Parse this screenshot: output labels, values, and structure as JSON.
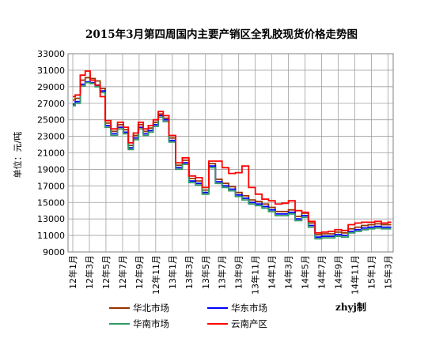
{
  "chart_data": {
    "type": "line",
    "title": "2015年3月第四周国内主要产销区全乳胶现货价格走势图",
    "ylabel": "单位：元/吨",
    "xlabel": "",
    "ylim": [
      9000,
      33000
    ],
    "y_ticks": [
      "33000",
      "31000",
      "29000",
      "27000",
      "25000",
      "23000",
      "21000",
      "19000",
      "17000",
      "15000",
      "13000",
      "11000",
      "9000"
    ],
    "x_ticks": [
      "12年1月",
      "12年3月",
      "12年5月",
      "12年7月",
      "12年9月",
      "12年11月",
      "13年1月",
      "13年3月",
      "13年5月",
      "13年7月",
      "13年9月",
      "13年11月",
      "14年1月",
      "14年3月",
      "14年5月",
      "14年7月",
      "14年9月",
      "14年11月",
      "15年1月",
      "15年3月"
    ],
    "grid": true,
    "legend_position": "bottom",
    "credit": "zhyj制",
    "series": [
      {
        "name": "华北市场",
        "color": "#993300",
        "x": [
          0,
          0.3,
          0.6,
          0.9,
          1.2,
          1.5,
          1.8,
          2.1,
          2.5,
          2.9,
          3.2,
          3.5,
          3.8,
          4.1,
          4.4,
          4.7,
          5.0,
          5.3,
          5.6,
          6.0,
          6.4,
          6.8,
          7.2,
          7.6,
          8.0,
          8.4,
          8.8,
          9.2,
          9.6,
          10.0,
          10.4,
          10.8,
          11.2,
          11.6,
          12.0,
          12.4,
          12.8,
          13.2,
          13.6,
          14.0,
          14.4,
          14.8,
          15.2,
          15.6,
          16.0,
          16.4,
          16.8,
          17.2,
          17.6,
          18.0,
          18.4,
          18.8,
          19.2
        ],
        "y": [
          27400,
          27600,
          29800,
          30100,
          30000,
          29700,
          28800,
          24600,
          23600,
          24400,
          23800,
          21900,
          23100,
          24400,
          23600,
          24000,
          24700,
          25700,
          25200,
          22800,
          19500,
          20100,
          17900,
          17600,
          16500,
          19700,
          17800,
          17300,
          16900,
          16200,
          15800,
          15300,
          15100,
          14800,
          14400,
          13900,
          13900,
          14100,
          13300,
          13700,
          12500,
          11100,
          11200,
          11200,
          11400,
          11300,
          11800,
          12000,
          12200,
          12300,
          12400,
          12300,
          12300
        ]
      },
      {
        "name": "华东市场",
        "color": "#0000ff",
        "x": [
          0,
          0.3,
          0.6,
          0.9,
          1.2,
          1.5,
          1.8,
          2.1,
          2.5,
          2.9,
          3.2,
          3.5,
          3.8,
          4.1,
          4.4,
          4.7,
          5.0,
          5.3,
          5.6,
          6.0,
          6.4,
          6.8,
          7.2,
          7.6,
          8.0,
          8.4,
          8.8,
          9.2,
          9.6,
          10.0,
          10.4,
          10.8,
          11.2,
          11.6,
          12.0,
          12.4,
          12.8,
          13.2,
          13.6,
          14.0,
          14.4,
          14.8,
          15.2,
          15.6,
          16.0,
          16.4,
          16.8,
          17.2,
          17.6,
          18.0,
          18.4,
          18.8,
          19.2
        ],
        "y": [
          26900,
          27200,
          29300,
          29600,
          29500,
          29100,
          28500,
          24300,
          23300,
          24100,
          23500,
          21600,
          22800,
          24100,
          23300,
          23700,
          24400,
          25500,
          25000,
          22500,
          19200,
          19800,
          17600,
          17300,
          16200,
          19400,
          17500,
          17000,
          16600,
          15900,
          15500,
          15000,
          14800,
          14500,
          14100,
          13600,
          13600,
          13800,
          13000,
          13400,
          12200,
          10800,
          10900,
          10900,
          11100,
          11000,
          11500,
          11700,
          11900,
          12000,
          12100,
          12000,
          12000
        ]
      },
      {
        "name": "华南市场",
        "color": "#339966",
        "x": [
          0,
          0.3,
          0.6,
          0.9,
          1.2,
          1.5,
          1.8,
          2.1,
          2.5,
          2.9,
          3.2,
          3.5,
          3.8,
          4.1,
          4.4,
          4.7,
          5.0,
          5.3,
          5.6,
          6.0,
          6.4,
          6.8,
          7.2,
          7.6,
          8.0,
          8.4,
          8.8,
          9.2,
          9.6,
          10.0,
          10.4,
          10.8,
          11.2,
          11.6,
          12.0,
          12.4,
          12.8,
          13.2,
          13.6,
          14.0,
          14.4,
          14.8,
          15.2,
          15.6,
          16.0,
          16.4,
          16.8,
          17.2,
          17.6,
          18.0,
          18.4,
          18.8,
          19.2
        ],
        "y": [
          26700,
          27000,
          29100,
          29500,
          29400,
          29000,
          28300,
          24100,
          23100,
          23900,
          23300,
          21400,
          22600,
          23900,
          23100,
          23500,
          24200,
          25300,
          24800,
          22300,
          19000,
          19600,
          17400,
          17100,
          16000,
          19200,
          17300,
          16800,
          16400,
          15700,
          15300,
          14800,
          14600,
          14300,
          13900,
          13400,
          13400,
          13600,
          12800,
          13200,
          12000,
          10600,
          10700,
          10700,
          10900,
          10800,
          11300,
          11500,
          11700,
          11800,
          11900,
          11800,
          11800
        ]
      },
      {
        "name": "云南产区",
        "color": "#ff0000",
        "x": [
          0,
          0.3,
          0.6,
          0.9,
          1.2,
          1.5,
          1.8,
          2.1,
          2.5,
          2.9,
          3.2,
          3.5,
          3.8,
          4.1,
          4.4,
          4.7,
          5.0,
          5.3,
          5.6,
          6.0,
          6.4,
          6.8,
          7.2,
          7.6,
          8.0,
          8.4,
          8.8,
          9.2,
          9.6,
          10.0,
          10.4,
          10.8,
          11.2,
          11.6,
          12.0,
          12.4,
          12.8,
          13.2,
          13.6,
          14.0,
          14.4,
          14.8,
          15.2,
          15.6,
          16.0,
          16.4,
          16.8,
          17.2,
          17.6,
          18.0,
          18.4,
          18.8,
          19.2
        ],
        "y": [
          27800,
          28000,
          30400,
          30900,
          29800,
          29200,
          27800,
          24900,
          23900,
          24700,
          24100,
          22200,
          23400,
          24700,
          23900,
          24300,
          25000,
          26000,
          25500,
          23100,
          19800,
          20400,
          18200,
          18000,
          16800,
          20000,
          20000,
          19200,
          18500,
          18600,
          19400,
          16800,
          16000,
          15400,
          15200,
          14800,
          14900,
          15200,
          14000,
          13800,
          12700,
          11300,
          11400,
          11500,
          11700,
          11600,
          12300,
          12500,
          12600,
          12600,
          12700,
          12500,
          12600
        ]
      }
    ]
  }
}
